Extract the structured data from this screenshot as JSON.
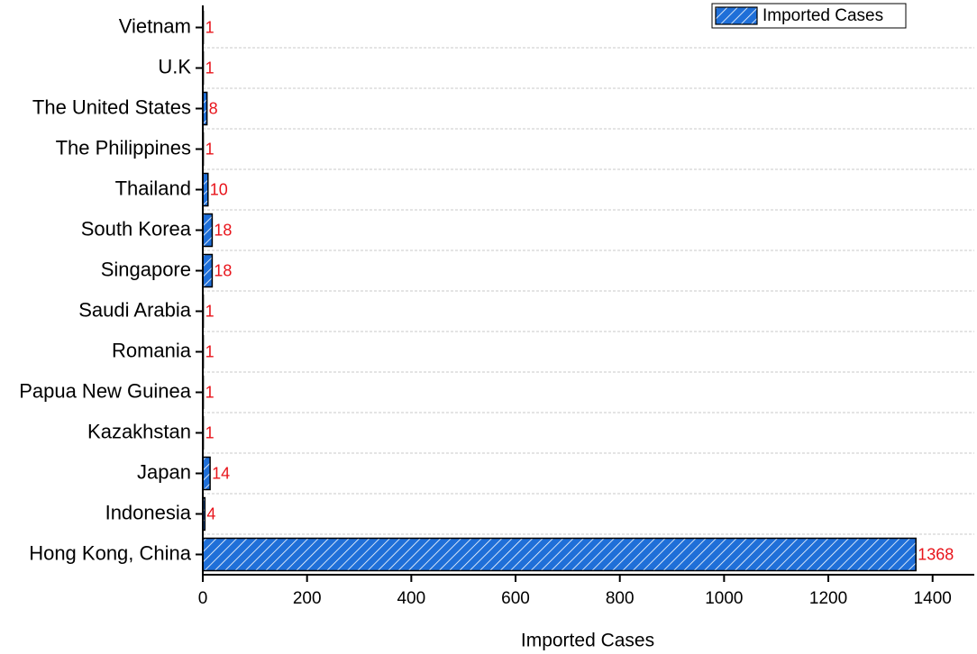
{
  "chart_data": {
    "type": "barh",
    "xlabel": "Imported Cases",
    "categories": [
      "Vietnam",
      "U.K",
      "The United States",
      "The Philippines",
      "Thailand",
      "South Korea",
      "Singapore",
      "Saudi Arabia",
      "Romania",
      "Papua New Guinea",
      "Kazakhstan",
      "Japan",
      "Indonesia",
      "Hong Kong, China"
    ],
    "series": [
      {
        "name": "Imported Cases",
        "color": "#1f6fd8",
        "values": [
          1,
          1,
          8,
          1,
          10,
          18,
          18,
          1,
          1,
          1,
          1,
          14,
          4,
          1368
        ]
      }
    ],
    "label_color": "#e8141b",
    "xlim": [
      0,
      1480
    ],
    "xticks": [
      0,
      200,
      400,
      600,
      800,
      1000,
      1200,
      1400
    ],
    "grid": true,
    "legend": "upper right"
  }
}
